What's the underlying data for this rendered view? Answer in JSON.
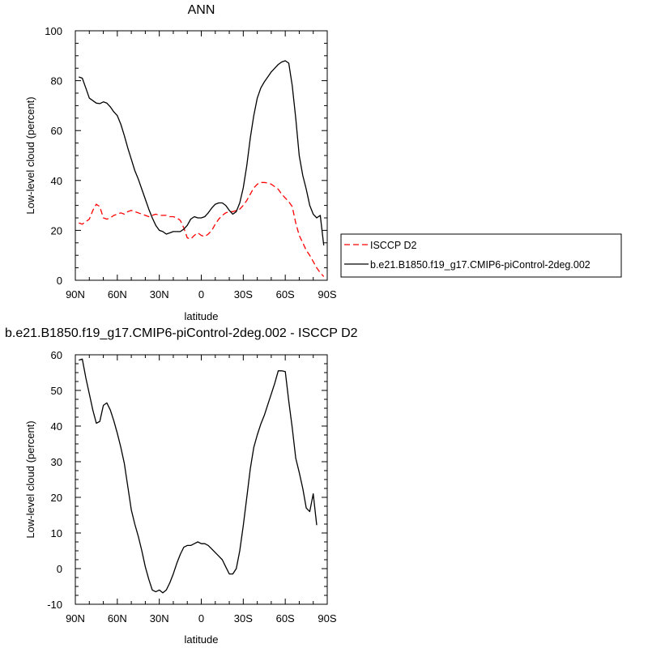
{
  "chart_data": [
    {
      "type": "line",
      "title": "ANN",
      "xlabel": "latitude",
      "ylabel": "Low-level cloud (percent)",
      "xlim": [
        90,
        -90
      ],
      "ylim": [
        0,
        100
      ],
      "xticks": [
        90,
        60,
        30,
        0,
        -30,
        -60,
        -90
      ],
      "xtick_labels": [
        "90N",
        "60N",
        "30N",
        "0",
        "30S",
        "60S",
        "90S"
      ],
      "yticks": [
        0,
        20,
        40,
        60,
        80,
        100
      ],
      "ytick_labels": [
        "0",
        "20",
        "40",
        "60",
        "80",
        "100"
      ],
      "legend_position": "right",
      "series": [
        {
          "name": "ISCCP D2",
          "color": "#ff0000",
          "dash": "dashed",
          "points": [
            [
              87.5,
              23
            ],
            [
              85,
              22.5
            ],
            [
              82.5,
              23.5
            ],
            [
              80,
              24.5
            ],
            [
              77.5,
              28
            ],
            [
              75,
              30.5
            ],
            [
              72.5,
              29.5
            ],
            [
              70,
              25
            ],
            [
              67.5,
              24.5
            ],
            [
              65,
              25
            ],
            [
              62.5,
              26
            ],
            [
              60,
              26.5
            ],
            [
              57.5,
              27
            ],
            [
              55,
              26.5
            ],
            [
              52.5,
              27.5
            ],
            [
              50,
              28
            ],
            [
              47.5,
              27.5
            ],
            [
              45,
              27
            ],
            [
              42.5,
              26.5
            ],
            [
              40,
              26
            ],
            [
              37.5,
              25.5
            ],
            [
              35,
              26
            ],
            [
              32.5,
              26.5
            ],
            [
              30,
              26
            ],
            [
              27.5,
              26
            ],
            [
              25,
              26
            ],
            [
              22.5,
              25.5
            ],
            [
              20,
              25.5
            ],
            [
              17.5,
              25
            ],
            [
              15,
              24
            ],
            [
              12.5,
              21
            ],
            [
              10,
              17
            ],
            [
              7.5,
              16.5
            ],
            [
              5,
              18
            ],
            [
              2.5,
              19
            ],
            [
              0,
              18
            ],
            [
              -2.5,
              17.5
            ],
            [
              -5,
              18.5
            ],
            [
              -7.5,
              20
            ],
            [
              -10,
              22.5
            ],
            [
              -12.5,
              24.5
            ],
            [
              -15,
              26
            ],
            [
              -17.5,
              27
            ],
            [
              -20,
              27.5
            ],
            [
              -22.5,
              27.5
            ],
            [
              -25,
              28
            ],
            [
              -27.5,
              28.5
            ],
            [
              -30,
              30
            ],
            [
              -32.5,
              32
            ],
            [
              -35,
              34.5
            ],
            [
              -37.5,
              37
            ],
            [
              -40,
              38.5
            ],
            [
              -42.5,
              39.2
            ],
            [
              -45,
              39.2
            ],
            [
              -47.5,
              39
            ],
            [
              -50,
              38.5
            ],
            [
              -52.5,
              37.5
            ],
            [
              -55,
              36.5
            ],
            [
              -57.5,
              34.5
            ],
            [
              -60,
              33
            ],
            [
              -62.5,
              31.5
            ],
            [
              -65,
              29.5
            ],
            [
              -67.5,
              23
            ],
            [
              -70,
              18
            ],
            [
              -72.5,
              15
            ],
            [
              -75,
              12
            ],
            [
              -77.5,
              10
            ],
            [
              -80,
              7.5
            ],
            [
              -82.5,
              5
            ],
            [
              -85,
              3
            ],
            [
              -87.5,
              1.5
            ]
          ]
        },
        {
          "name": "b.e21.B1850.f19_g17.CMIP6-piControl-2deg.002",
          "color": "#000000",
          "dash": "solid",
          "points": [
            [
              87.5,
              81.5
            ],
            [
              85,
              81
            ],
            [
              82.5,
              77
            ],
            [
              80,
              73
            ],
            [
              77.5,
              72
            ],
            [
              75,
              71
            ],
            [
              72.5,
              70.8
            ],
            [
              70,
              71.5
            ],
            [
              67.5,
              71
            ],
            [
              65,
              69.5
            ],
            [
              62.5,
              67.5
            ],
            [
              60,
              66
            ],
            [
              57.5,
              62.5
            ],
            [
              55,
              58
            ],
            [
              52.5,
              53
            ],
            [
              50,
              48.5
            ],
            [
              47.5,
              44
            ],
            [
              45,
              40.5
            ],
            [
              42.5,
              36.5
            ],
            [
              40,
              32.5
            ],
            [
              37.5,
              28.5
            ],
            [
              35,
              25
            ],
            [
              32.5,
              22
            ],
            [
              30,
              20
            ],
            [
              27.5,
              19.5
            ],
            [
              25,
              18.5
            ],
            [
              22.5,
              19
            ],
            [
              20,
              19.5
            ],
            [
              17.5,
              19.5
            ],
            [
              15,
              19.5
            ],
            [
              12.5,
              20.5
            ],
            [
              10,
              22
            ],
            [
              7.5,
              24.5
            ],
            [
              5,
              25.5
            ],
            [
              2.5,
              25
            ],
            [
              0,
              25
            ],
            [
              -2.5,
              25.5
            ],
            [
              -5,
              27
            ],
            [
              -7.5,
              29
            ],
            [
              -10,
              30.5
            ],
            [
              -12.5,
              31
            ],
            [
              -15,
              31
            ],
            [
              -17.5,
              30
            ],
            [
              -20,
              28
            ],
            [
              -22.5,
              26.5
            ],
            [
              -25,
              27.5
            ],
            [
              -27.5,
              31
            ],
            [
              -30,
              37
            ],
            [
              -32.5,
              46
            ],
            [
              -35,
              57
            ],
            [
              -37.5,
              66
            ],
            [
              -40,
              73
            ],
            [
              -42.5,
              77
            ],
            [
              -45,
              79.5
            ],
            [
              -47.5,
              81.5
            ],
            [
              -50,
              83.5
            ],
            [
              -52.5,
              85
            ],
            [
              -55,
              86.5
            ],
            [
              -57.5,
              87.5
            ],
            [
              -60,
              88
            ],
            [
              -62.5,
              87
            ],
            [
              -65,
              78
            ],
            [
              -67.5,
              65
            ],
            [
              -70,
              50
            ],
            [
              -72.5,
              42
            ],
            [
              -75,
              36.5
            ],
            [
              -77.5,
              30
            ],
            [
              -80,
              26.5
            ],
            [
              -82.5,
              25
            ],
            [
              -85,
              26
            ],
            [
              -87.5,
              14
            ]
          ]
        }
      ]
    },
    {
      "type": "line",
      "title": "b.e21.B1850.f19_g17.CMIP6-piControl-2deg.002 - ISCCP D2",
      "xlabel": "latitude",
      "ylabel": "Low-level cloud (percent)",
      "xlim": [
        90,
        -90
      ],
      "ylim": [
        -10,
        60
      ],
      "xticks": [
        90,
        60,
        30,
        0,
        -30,
        -60,
        -90
      ],
      "xtick_labels": [
        "90N",
        "60N",
        "30N",
        "0",
        "30S",
        "60S",
        "90S"
      ],
      "yticks": [
        -10,
        0,
        10,
        20,
        30,
        40,
        50,
        60
      ],
      "ytick_labels": [
        "-10",
        "0",
        "10",
        "20",
        "30",
        "40",
        "50",
        "60"
      ],
      "series": [
        {
          "color": "#000000",
          "dash": "solid",
          "points": [
            [
              87.5,
              58.5
            ],
            [
              85,
              58.8
            ],
            [
              82.5,
              53.5
            ],
            [
              80,
              49
            ],
            [
              77.5,
              44.5
            ],
            [
              75,
              40.8
            ],
            [
              72.5,
              41.3
            ],
            [
              70,
              45.8
            ],
            [
              67.5,
              46.5
            ],
            [
              65,
              44.5
            ],
            [
              62.5,
              41.5
            ],
            [
              60,
              38
            ],
            [
              57.5,
              34
            ],
            [
              55,
              29.5
            ],
            [
              52.5,
              23
            ],
            [
              50,
              16.5
            ],
            [
              47.5,
              12.5
            ],
            [
              45,
              9
            ],
            [
              42.5,
              5
            ],
            [
              40,
              0.5
            ],
            [
              37.5,
              -3
            ],
            [
              35,
              -6
            ],
            [
              32.5,
              -6.5
            ],
            [
              30,
              -6
            ],
            [
              27.5,
              -6.8
            ],
            [
              25,
              -6
            ],
            [
              22.5,
              -4
            ],
            [
              20,
              -1.5
            ],
            [
              17.5,
              1.5
            ],
            [
              15,
              4
            ],
            [
              12.5,
              6
            ],
            [
              10,
              6.5
            ],
            [
              7.5,
              6.5
            ],
            [
              5,
              7
            ],
            [
              2.5,
              7.5
            ],
            [
              0,
              7
            ],
            [
              -2.5,
              7
            ],
            [
              -5,
              6.5
            ],
            [
              -7.5,
              5.5
            ],
            [
              -10,
              4.5
            ],
            [
              -12.5,
              3.5
            ],
            [
              -15,
              2.5
            ],
            [
              -17.5,
              0.5
            ],
            [
              -20,
              -1.5
            ],
            [
              -22.5,
              -1.5
            ],
            [
              -25,
              0
            ],
            [
              -27.5,
              5
            ],
            [
              -30,
              12
            ],
            [
              -32.5,
              20
            ],
            [
              -35,
              28
            ],
            [
              -37.5,
              34
            ],
            [
              -40,
              37.5
            ],
            [
              -42.5,
              40.5
            ],
            [
              -45,
              43
            ],
            [
              -47.5,
              46
            ],
            [
              -50,
              49
            ],
            [
              -52.5,
              52
            ],
            [
              -55,
              55.5
            ],
            [
              -57.5,
              55.5
            ],
            [
              -60,
              55.3
            ],
            [
              -62.5,
              47
            ],
            [
              -65,
              39.5
            ],
            [
              -67.5,
              31
            ],
            [
              -70,
              27
            ],
            [
              -72.5,
              22.5
            ],
            [
              -75,
              17
            ],
            [
              -77.5,
              16
            ],
            [
              -80,
              21
            ],
            [
              -82.5,
              12.2
            ]
          ]
        }
      ]
    }
  ]
}
